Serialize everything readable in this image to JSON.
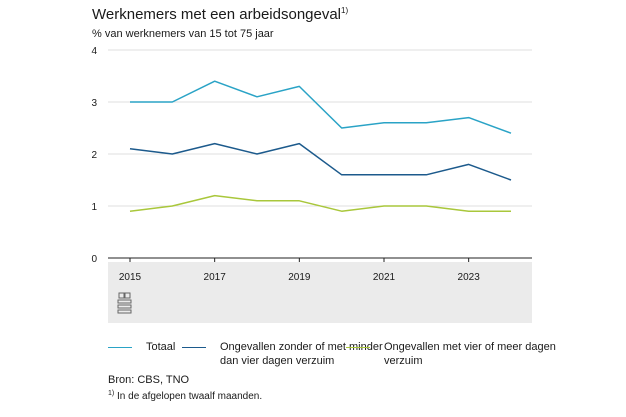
{
  "header": {
    "title": "Werknemers met een arbeidsongeval",
    "title_note": "1)",
    "subtitle": "% van werknemers van 15 tot 75 jaar"
  },
  "chart_data": {
    "type": "line",
    "title": "Werknemers met een arbeidsongeval",
    "ylabel": "% van werknemers van 15 tot 75 jaar",
    "x": [
      2015,
      2016,
      2017,
      2018,
      2019,
      2020,
      2021,
      2022,
      2023,
      2024
    ],
    "x_tick_labels": [
      "2015",
      "2017",
      "2019",
      "2021",
      "2023"
    ],
    "y_tick_labels": [
      "0",
      "1",
      "2",
      "3",
      "4"
    ],
    "ylim": [
      0,
      4
    ],
    "grid": "horizontal",
    "legend_position": "bottom",
    "series": [
      {
        "name": "Totaal",
        "color": "#2aa3c6",
        "values": [
          3.0,
          3.0,
          3.4,
          3.1,
          3.3,
          2.5,
          2.6,
          2.6,
          2.7,
          2.4
        ]
      },
      {
        "name": "Ongevallen zonder of met minder dan vier dagen verzuim",
        "color": "#1c5a8c",
        "values": [
          2.1,
          2.0,
          2.2,
          2.0,
          2.2,
          1.6,
          1.6,
          1.6,
          1.8,
          1.5
        ]
      },
      {
        "name": "Ongevallen met vier of meer dagen verzuim",
        "color": "#a9c73b",
        "values": [
          0.9,
          1.0,
          1.2,
          1.1,
          1.1,
          0.9,
          1.0,
          1.0,
          0.9,
          0.9
        ]
      }
    ]
  },
  "legend": [
    {
      "line1": "Totaal",
      "line2": ""
    },
    {
      "line1": "Ongevallen zonder of met minder",
      "line2": "dan vier dagen verzuim"
    },
    {
      "line1": "Ongevallen met vier of meer dagen",
      "line2": "verzuim"
    }
  ],
  "source": "Bron: CBS, TNO",
  "footnote": {
    "marker": "1)",
    "text": "In de afgelopen twaalf maanden."
  },
  "icons": {
    "logo": "cbs-logo-icon"
  }
}
